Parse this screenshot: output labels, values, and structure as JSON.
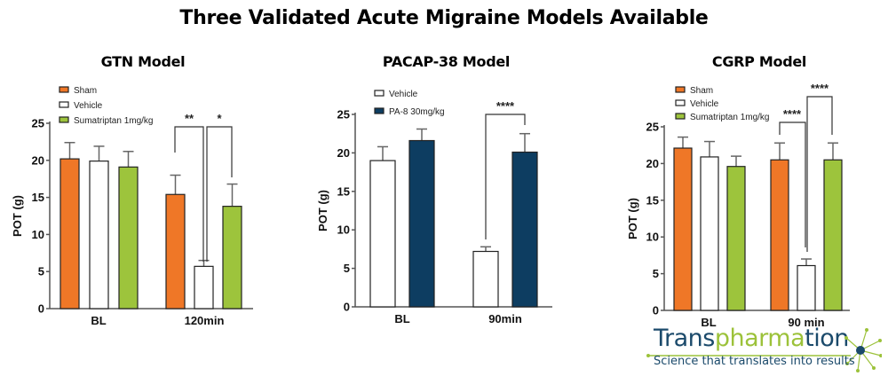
{
  "header": {
    "title": "Three Validated Acute Migraine Models Available"
  },
  "colors": {
    "sham": "#ef7727",
    "vehicle": "#ffffff",
    "sumatriptan": "#9dc43c",
    "pa8": "#0d3d61",
    "logo_blue": "#1b4a6b",
    "logo_green": "#9cc23a"
  },
  "logo": {
    "text_part1": "Trans",
    "text_part2": "pharma",
    "text_part3": "tion",
    "tagline": "Science that translates into results"
  },
  "chart_data": [
    {
      "type": "bar",
      "title": "GTN Model",
      "xlabel": "",
      "ylabel": "POT (g)",
      "ylim": [
        0,
        25
      ],
      "yticks": [
        0,
        5,
        10,
        15,
        20,
        25
      ],
      "categories": [
        "BL",
        "120min"
      ],
      "legend": [
        "Sham",
        "Vehicle",
        "Sumatriptan 1mg/kg"
      ],
      "legend_position": "top-left",
      "series": [
        {
          "name": "Sham",
          "values": [
            20.2,
            15.4
          ],
          "errors": [
            2.2,
            2.6
          ]
        },
        {
          "name": "Vehicle",
          "values": [
            19.9,
            5.7
          ],
          "errors": [
            2.0,
            0.8
          ]
        },
        {
          "name": "Sumatriptan 1mg/kg",
          "values": [
            19.1,
            13.8
          ],
          "errors": [
            2.1,
            3.0
          ]
        }
      ],
      "annotations": [
        {
          "label": "**",
          "between": [
            "Sham 120min",
            "Vehicle 120min"
          ]
        },
        {
          "label": "*",
          "between": [
            "Vehicle 120min",
            "Sumatriptan 120min"
          ]
        }
      ]
    },
    {
      "type": "bar",
      "title": "PACAP-38 Model",
      "xlabel": "",
      "ylabel": "POT (g)",
      "ylim": [
        0,
        25
      ],
      "yticks": [
        0,
        5,
        10,
        15,
        20,
        25
      ],
      "categories": [
        "BL",
        "90min"
      ],
      "legend": [
        "Vehicle",
        "PA-8 30mg/kg"
      ],
      "legend_position": "top-left",
      "series": [
        {
          "name": "Vehicle",
          "values": [
            19.0,
            7.2
          ],
          "errors": [
            1.8,
            0.6
          ]
        },
        {
          "name": "PA-8 30mg/kg",
          "values": [
            21.6,
            20.1
          ],
          "errors": [
            1.5,
            2.4
          ]
        }
      ],
      "annotations": [
        {
          "label": "****",
          "between": [
            "Vehicle 90min",
            "PA-8 90min"
          ]
        }
      ]
    },
    {
      "type": "bar",
      "title": "CGRP Model",
      "xlabel": "",
      "ylabel": "POT (g)",
      "ylim": [
        0,
        25
      ],
      "yticks": [
        0,
        5,
        10,
        15,
        20,
        25
      ],
      "categories": [
        "BL",
        "90 min"
      ],
      "legend": [
        "Sham",
        "Vehicle",
        "Sumatriptan 1mg/kg"
      ],
      "legend_position": "top-left",
      "series": [
        {
          "name": "Sham",
          "values": [
            22.1,
            20.5
          ],
          "errors": [
            1.5,
            2.3
          ]
        },
        {
          "name": "Vehicle",
          "values": [
            20.9,
            6.1
          ],
          "errors": [
            2.1,
            0.9
          ]
        },
        {
          "name": "Sumatriptan 1mg/kg",
          "values": [
            19.6,
            20.5
          ],
          "errors": [
            1.4,
            2.3
          ]
        }
      ],
      "annotations": [
        {
          "label": "****",
          "between": [
            "Sham 90 min",
            "Vehicle 90 min"
          ]
        },
        {
          "label": "****",
          "between": [
            "Vehicle 90 min",
            "Sumatriptan 90 min"
          ]
        }
      ]
    }
  ]
}
